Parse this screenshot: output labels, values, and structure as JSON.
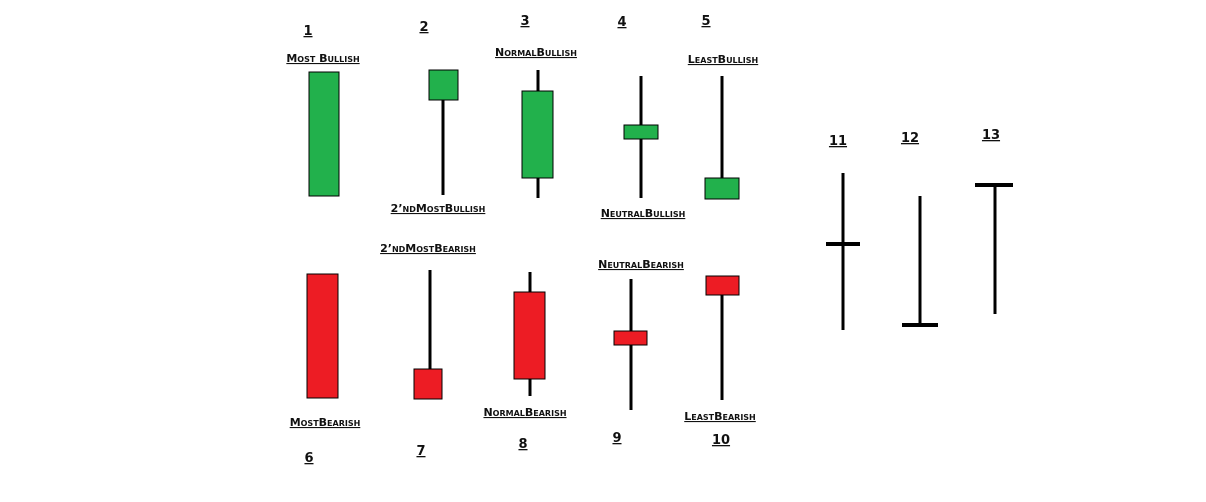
{
  "colors": {
    "bullish": "#22b14c",
    "bearish": "#ed1c24",
    "wick": "#000000",
    "outline": "#000000"
  },
  "candles": [
    {
      "number": "1",
      "label": "Most Bullish",
      "type": "bullish"
    },
    {
      "number": "2",
      "label": "2’ndMostBullish",
      "type": "bullish"
    },
    {
      "number": "3",
      "label": "NormalBullish",
      "type": "bullish"
    },
    {
      "number": "4",
      "label": "NeutralBullish",
      "type": "bullish"
    },
    {
      "number": "5",
      "label": "LeastBullish",
      "type": "bullish"
    },
    {
      "number": "6",
      "label": "MostBearish",
      "type": "bearish"
    },
    {
      "number": "7",
      "label": "2’ndMostBearish",
      "type": "bearish"
    },
    {
      "number": "8",
      "label": "NormalBearish",
      "type": "bearish"
    },
    {
      "number": "9",
      "label": "NeutralBearish",
      "type": "bearish"
    },
    {
      "number": "10",
      "label": "LeastBearish",
      "type": "bearish"
    },
    {
      "number": "11",
      "label": "",
      "type": "cross"
    },
    {
      "number": "12",
      "label": "",
      "type": "cross"
    },
    {
      "number": "13",
      "label": "",
      "type": "cross"
    }
  ]
}
